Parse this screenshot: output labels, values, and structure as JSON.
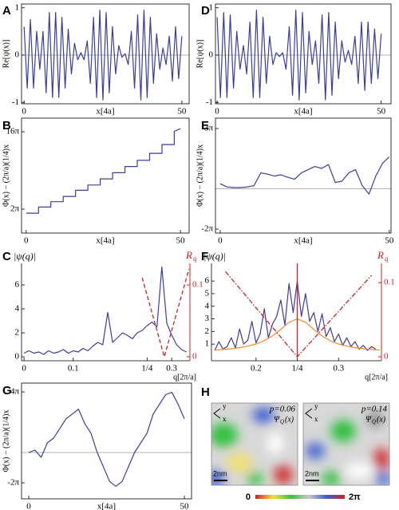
{
  "chart_data": [
    {
      "type": "line",
      "label": "A",
      "ylabel": "Re[ψ(x)]",
      "xlabel": "x[4a]",
      "xlim": [
        -0.8,
        52.3
      ],
      "ylim": [
        -1.03,
        1.08
      ],
      "xticks": [
        0,
        50
      ],
      "yticks": [
        -1,
        0,
        1
      ],
      "hline": 0,
      "series": [
        {
          "color": "#3b3d9c",
          "x": [
            0,
            1,
            2,
            3,
            4,
            5,
            6,
            7,
            8,
            9,
            10,
            11,
            12,
            13,
            14,
            15,
            16,
            17,
            18,
            19,
            20,
            21,
            22,
            23,
            24,
            25,
            26,
            27,
            28,
            29,
            30,
            31,
            32,
            33,
            34,
            35,
            36,
            37,
            38,
            39,
            40,
            41,
            42,
            43,
            44,
            45,
            46,
            47,
            48,
            49,
            50
          ],
          "values": [
            0.6,
            -0.7,
            0.75,
            -0.7,
            0.5,
            -0.3,
            0.5,
            -0.8,
            0.9,
            -0.9,
            0.9,
            -0.9,
            0.8,
            -0.7,
            0.55,
            -0.4,
            0.25,
            -0.1,
            0.05,
            -0.1,
            0.3,
            -0.6,
            0.8,
            -0.9,
            0.95,
            -0.95,
            0.9,
            -0.8,
            0.6,
            -0.4,
            0.2,
            -0.05,
            0.03,
            -0.2,
            0.5,
            -0.7,
            0.85,
            -0.95,
            0.95,
            -0.9,
            0.8,
            -0.6,
            0.45,
            -0.3,
            0.15,
            -0.2,
            0.4,
            -0.55,
            0.6,
            -0.5,
            0.4
          ]
        }
      ]
    },
    {
      "type": "line",
      "label": "D",
      "ylabel": "Re[ψ(x)]",
      "xlabel": "x[4a]",
      "xlim": [
        -0.5,
        53
      ],
      "ylim": [
        -1.03,
        1.08
      ],
      "xticks": [
        0,
        50
      ],
      "yticks": [
        -1,
        0,
        1
      ],
      "hline": 0,
      "series": [
        {
          "color": "#3b3d9c",
          "x": [
            0,
            1,
            2,
            3,
            4,
            5,
            6,
            7,
            8,
            9,
            10,
            11,
            12,
            13,
            14,
            15,
            16,
            17,
            18,
            19,
            20,
            21,
            22,
            23,
            24,
            25,
            26,
            27,
            28,
            29,
            30,
            31,
            32,
            33,
            34,
            35,
            36,
            37,
            38,
            39,
            40,
            41,
            42,
            43,
            44,
            45,
            46,
            47,
            48,
            49,
            50
          ],
          "values": [
            0.8,
            -0.9,
            0.9,
            -0.9,
            0.85,
            -0.7,
            0.5,
            -0.3,
            0.2,
            -0.4,
            0.7,
            -0.9,
            0.95,
            -0.9,
            0.8,
            -0.6,
            0.4,
            -0.2,
            0.05,
            -0.03,
            0.05,
            -0.3,
            0.6,
            -0.85,
            0.95,
            -0.95,
            0.9,
            -0.8,
            0.5,
            -0.2,
            0.3,
            -0.6,
            0.85,
            -0.95,
            0.9,
            -0.85,
            0.7,
            -0.5,
            0.3,
            -0.15,
            0.1,
            -0.2,
            0.4,
            -0.6,
            0.7,
            -0.75,
            0.7,
            -0.6,
            0.55,
            -0.5,
            0.45
          ]
        }
      ]
    },
    {
      "type": "line",
      "label": "B",
      "ylabel": "Φ(x) − (2π/a)(1/4)x",
      "xlabel": "x[4a]",
      "xlim": [
        -1.5,
        52.8
      ],
      "ylim": [
        -7.3,
        58
      ],
      "xticks": [
        0,
        50
      ],
      "yticks": [
        {
          "value": 6.2832,
          "label": "2π"
        },
        {
          "value": 50.2655,
          "label": "16π"
        }
      ],
      "series": [
        {
          "color": "#3b3d9c",
          "x": [
            0,
            4,
            4,
            8,
            8,
            12,
            12,
            16,
            16,
            20,
            20,
            24,
            24,
            28,
            28,
            32,
            32,
            36,
            36,
            40,
            40,
            44,
            44,
            48,
            48,
            50
          ],
          "values": [
            4,
            4,
            7.5,
            7.5,
            10.5,
            10.5,
            13.5,
            13.5,
            17,
            17,
            20,
            20,
            23.5,
            23.5,
            27,
            27,
            30.5,
            30.5,
            34,
            34,
            38,
            38,
            43,
            43,
            50.5,
            52
          ]
        }
      ]
    },
    {
      "type": "line",
      "label": "E",
      "ylabel": "Φ(x) − (2π/a)(1/4)x",
      "xlabel": "x[4a]",
      "xlim": [
        -1.4,
        50.5
      ],
      "ylim": [
        -6.9,
        11.05
      ],
      "xticks": [
        0,
        50
      ],
      "yticks": [
        {
          "value": -6.2832,
          "label": "-2π"
        },
        {
          "value": 9.4248,
          "label": "3π"
        }
      ],
      "hline": 0,
      "series": [
        {
          "color": "#3b3d9c",
          "x": [
            0,
            2,
            4,
            6,
            8,
            10,
            12,
            14,
            16,
            18,
            20,
            22,
            24,
            26,
            28,
            30,
            32,
            34,
            36,
            38,
            40,
            42,
            44,
            46,
            48,
            50
          ],
          "values": [
            0.8,
            0.3,
            0.2,
            0.2,
            0.3,
            0.5,
            2.5,
            2.3,
            2,
            2.2,
            1.8,
            1.5,
            2.5,
            3,
            3.5,
            3.2,
            3.8,
            1,
            1.2,
            2.5,
            3,
            0.5,
            -0.8,
            2,
            4,
            5
          ]
        }
      ]
    },
    {
      "type": "line",
      "label": "C",
      "ylabel": "|ψ(q)|",
      "xlabel": "q[2π/a]",
      "xlim": [
        -0.005,
        0.337
      ],
      "ylim": [
        -0.33,
        7.8
      ],
      "xticks": [
        0,
        0.1,
        {
          "value": 0.25,
          "label": "1/4"
        },
        0.3
      ],
      "yticks": [
        0,
        2,
        4,
        6
      ],
      "y2label": {
        "main": "R",
        "sub": "q"
      },
      "y2lim": [
        -0.0056,
        0.13
      ],
      "y2ticks": [
        0,
        0.1
      ],
      "y2color": "#d0202a",
      "series": [
        {
          "color": "#3b3d9c",
          "x": [
            0,
            0.01,
            0.02,
            0.03,
            0.04,
            0.05,
            0.06,
            0.07,
            0.08,
            0.09,
            0.1,
            0.11,
            0.12,
            0.13,
            0.14,
            0.15,
            0.16,
            0.17,
            0.18,
            0.19,
            0.2,
            0.21,
            0.22,
            0.23,
            0.24,
            0.25,
            0.26,
            0.27,
            0.28,
            0.29,
            0.3,
            0.31,
            0.32,
            0.33
          ],
          "values": [
            0.3,
            0.5,
            0.3,
            0.4,
            0.2,
            0.5,
            0.3,
            0.4,
            0.6,
            0.3,
            0.5,
            0.4,
            0.7,
            0.5,
            0.9,
            1.2,
            1,
            3.7,
            1.2,
            1.6,
            2,
            1.8,
            1.5,
            2,
            2.2,
            2.6,
            2.9,
            2.5,
            7.5,
            2.8,
            1.8,
            1,
            0.6,
            0.4
          ]
        },
        {
          "color": "#d0202a",
          "axis": "y2",
          "dash": "dashed",
          "x": [
            0.24,
            0.285,
            0.335
          ],
          "values": [
            0.11,
            0,
            0.122
          ]
        }
      ]
    },
    {
      "type": "line",
      "label": "F",
      "ylabel": "|ψ(q)|",
      "xlabel": "q[2π/a]",
      "xlim": [
        0.146,
        0.352
      ],
      "ylim": [
        -0.32,
        7.4
      ],
      "xticks": [
        0.2,
        {
          "value": 0.25,
          "label": "1/4"
        },
        0.3
      ],
      "yticks": [
        1,
        2,
        3,
        4,
        5,
        6
      ],
      "y2label": {
        "main": "R",
        "sub": "q"
      },
      "y2lim": [
        -0.0054,
        0.126
      ],
      "y2ticks": [
        0,
        0.1
      ],
      "y2color": "#d0202a",
      "series": [
        {
          "color": "#3b3d9c",
          "x": [
            0.15,
            0.155,
            0.16,
            0.165,
            0.17,
            0.175,
            0.18,
            0.185,
            0.19,
            0.195,
            0.2,
            0.205,
            0.21,
            0.215,
            0.22,
            0.225,
            0.23,
            0.235,
            0.24,
            0.245,
            0.25,
            0.255,
            0.26,
            0.265,
            0.27,
            0.275,
            0.28,
            0.285,
            0.29,
            0.295,
            0.3,
            0.305,
            0.31,
            0.315,
            0.32,
            0.325,
            0.33,
            0.335,
            0.34,
            0.345
          ],
          "values": [
            0.5,
            1.2,
            0.6,
            0.8,
            1.5,
            0.7,
            2.2,
            1,
            1.3,
            2.8,
            1.1,
            1.8,
            3.8,
            1.5,
            2.6,
            3.2,
            4.5,
            2.5,
            5.8,
            3.5,
            6,
            3.2,
            5,
            2.8,
            3.5,
            2,
            3.4,
            1.6,
            2.3,
            1.2,
            1.8,
            0.9,
            1.5,
            0.8,
            1.2,
            0.6,
            0.9,
            0.5,
            0.8,
            0.6
          ]
        },
        {
          "color": "#f08c28",
          "x": [
            0.15,
            0.16,
            0.17,
            0.18,
            0.19,
            0.2,
            0.21,
            0.22,
            0.23,
            0.24,
            0.25,
            0.26,
            0.27,
            0.28,
            0.29,
            0.3,
            0.31,
            0.32,
            0.33,
            0.34,
            0.35
          ],
          "values": [
            0.52,
            0.57,
            0.63,
            0.72,
            0.84,
            1.01,
            1.27,
            1.65,
            2.17,
            2.73,
            3,
            2.73,
            2.17,
            1.65,
            1.27,
            1.01,
            0.84,
            0.72,
            0.63,
            0.57,
            0.52
          ]
        },
        {
          "color": "#d0202a",
          "axis": "y2",
          "x": [
            0.25,
            0.25
          ],
          "values": [
            0,
            0.126
          ]
        },
        {
          "color": "#d0202a",
          "axis": "y2",
          "dash": "dashdot",
          "x": [
            0.163,
            0.25,
            0.34
          ],
          "values": [
            0.115,
            0,
            0.11
          ]
        }
      ]
    },
    {
      "type": "line",
      "label": "G",
      "ylabel": "Φ(x) − (2π/a)(1/4)x",
      "xlabel": "x[4a]",
      "xlim": [
        -2.3,
        52.3
      ],
      "ylim": [
        -9.6,
        14.4
      ],
      "xticks": [
        0,
        50
      ],
      "yticks": [
        {
          "value": -6.2832,
          "label": "-2π"
        },
        {
          "value": 12.5664,
          "label": "4π"
        }
      ],
      "hline": 0,
      "series": [
        {
          "color": "#3b3d9c",
          "x": [
            0,
            2,
            4,
            6,
            8,
            10,
            12,
            14,
            16,
            18,
            20,
            22,
            24,
            26,
            28,
            30,
            32,
            34,
            36,
            38,
            40,
            42,
            44,
            46,
            48,
            50
          ],
          "values": [
            0,
            0.5,
            -1,
            2,
            3,
            5,
            7,
            8,
            9,
            6,
            4,
            0,
            -3,
            -6,
            -7,
            -6,
            -3,
            0,
            2,
            4,
            8,
            10,
            12,
            12.5,
            10,
            7
          ]
        }
      ]
    }
  ],
  "panel_h": {
    "label": "H",
    "images": [
      {
        "p": "p=0.06",
        "psi": {
          "main": "Ψ",
          "sub": "Q",
          "tail": "(x)"
        },
        "scale": "2nm",
        "axis_y": "y",
        "axis_x": "x"
      },
      {
        "p": "p=0.14",
        "psi": {
          "main": "Ψ",
          "sub": "Q",
          "tail": "(x)"
        },
        "scale": "2nm",
        "axis_y": "y",
        "axis_x": "x"
      }
    ],
    "colorbar": {
      "min": "0",
      "max": "2π"
    }
  }
}
